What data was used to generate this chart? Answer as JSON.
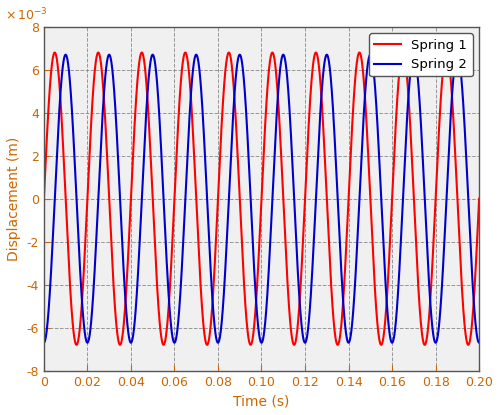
{
  "title": "",
  "xlabel": "Time (s)",
  "ylabel": "Displacement (m)",
  "xlim": [
    0,
    0.2
  ],
  "ylim": [
    -0.008,
    0.008
  ],
  "xticks": [
    0,
    0.02,
    0.04,
    0.06,
    0.08,
    0.1,
    0.12,
    0.14,
    0.16,
    0.18,
    0.2
  ],
  "yticks": [
    -0.008,
    -0.006,
    -0.004,
    -0.002,
    0,
    0.002,
    0.004,
    0.006,
    0.008
  ],
  "ytick_labels": [
    "-8",
    "-6",
    "-4",
    "-2",
    "0",
    "2",
    "4",
    "6",
    "8"
  ],
  "spring1_color": "#FF0000",
  "spring2_color": "#0000CC",
  "spring1_label": "Spring 1",
  "spring2_label": "Spring 2",
  "spring1_amplitude": 0.0068,
  "spring2_amplitude": 0.0067,
  "spring1_freq": 50,
  "spring2_freq": 50,
  "spring1_phase": 0.0,
  "spring2_phase": -1.5708,
  "num_points": 5000,
  "linewidth": 1.5,
  "grid_color": "#808080",
  "grid_linestyle": "--",
  "grid_linewidth": 0.7,
  "bg_color": "#FFFFFF",
  "axes_bg_color": "#F0F0F0",
  "label_color": "#CC6600",
  "tick_color": "#CC6600",
  "legend_loc": "upper right",
  "figsize": [
    5.0,
    4.15
  ],
  "dpi": 100
}
